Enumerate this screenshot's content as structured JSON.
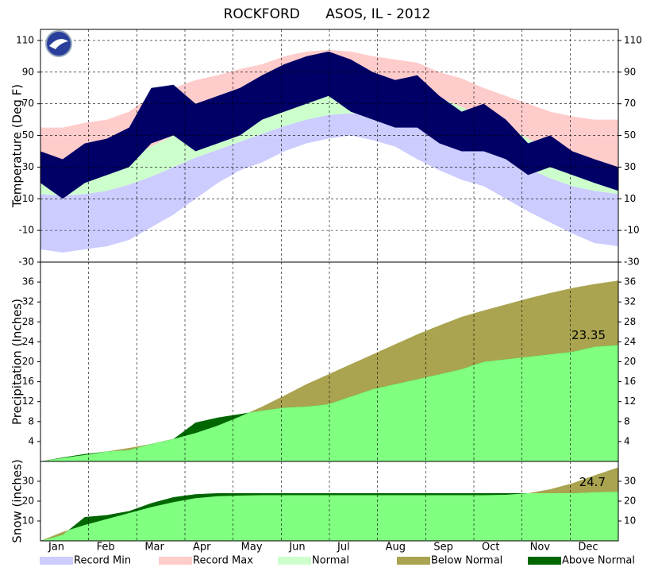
{
  "chart_data": [
    {
      "type": "range",
      "title": "ROCKFORD      ASOS, IL - 2012",
      "ylabel": "Temperature (Deg F)",
      "x": [
        1,
        15,
        29,
        43,
        57,
        71,
        85,
        99,
        113,
        127,
        141,
        155,
        169,
        183,
        197,
        211,
        225,
        239,
        253,
        267,
        281,
        295,
        309,
        323,
        337,
        351,
        366
      ],
      "xlim": [
        1,
        366
      ],
      "ylim": [
        -30,
        117
      ],
      "yticks": [
        -30,
        -10,
        10,
        30,
        50,
        70,
        90,
        110
      ],
      "record_min": [
        -22,
        -24,
        -22,
        -20,
        -16,
        -8,
        0,
        10,
        20,
        28,
        33,
        40,
        45,
        48,
        50,
        47,
        43,
        35,
        28,
        22,
        18,
        10,
        2,
        -5,
        -12,
        -18,
        -20
      ],
      "record_max": [
        55,
        55,
        58,
        60,
        65,
        75,
        80,
        85,
        88,
        92,
        95,
        100,
        103,
        104,
        103,
        100,
        98,
        96,
        90,
        86,
        80,
        75,
        70,
        65,
        62,
        60,
        60
      ],
      "normal_low": [
        13,
        12,
        13,
        15,
        19,
        24,
        30,
        36,
        41,
        46,
        51,
        56,
        60,
        63,
        64,
        63,
        61,
        57,
        51,
        45,
        40,
        35,
        29,
        23,
        18,
        15,
        13
      ],
      "normal_high": [
        29,
        29,
        30,
        33,
        37,
        43,
        50,
        56,
        62,
        68,
        73,
        78,
        82,
        84,
        84,
        83,
        81,
        78,
        74,
        68,
        62,
        56,
        48,
        41,
        35,
        31,
        29
      ],
      "observed": {
        "color": "#000066",
        "low": [
          20,
          10,
          20,
          25,
          30,
          45,
          50,
          40,
          45,
          50,
          60,
          65,
          70,
          75,
          65,
          60,
          55,
          55,
          45,
          40,
          40,
          35,
          25,
          30,
          25,
          20,
          15
        ],
        "high": [
          40,
          35,
          45,
          48,
          55,
          80,
          82,
          70,
          75,
          80,
          88,
          95,
          100,
          103,
          98,
          90,
          85,
          88,
          75,
          65,
          70,
          60,
          45,
          50,
          40,
          35,
          30
        ]
      }
    },
    {
      "type": "cumulative",
      "ylabel": "Precipitation (Inches)",
      "x": [
        1,
        15,
        29,
        43,
        57,
        71,
        85,
        99,
        113,
        127,
        141,
        155,
        169,
        183,
        197,
        211,
        225,
        239,
        253,
        267,
        281,
        295,
        309,
        323,
        337,
        351,
        366
      ],
      "xlim": [
        1,
        366
      ],
      "ylim": [
        0,
        40
      ],
      "yticks": [
        4,
        8,
        12,
        16,
        20,
        24,
        28,
        32,
        36
      ],
      "normal": [
        0,
        0.7,
        1.3,
        2.0,
        2.7,
        3.5,
        4.5,
        5.7,
        7.2,
        9.0,
        11,
        13.2,
        15.5,
        17.5,
        19.5,
        21.5,
        23.5,
        25.5,
        27.3,
        29,
        30.3,
        31.5,
        32.7,
        33.8,
        34.8,
        35.6,
        36.3
      ],
      "observed": {
        "color": "#80ff80",
        "values": [
          0,
          0.8,
          1.5,
          2.0,
          2.3,
          3.5,
          4.5,
          7.8,
          8.8,
          9.5,
          10.2,
          10.8,
          11,
          11.5,
          13,
          14.5,
          15.5,
          16.5,
          17.5,
          18.5,
          20,
          20.5,
          21,
          21.5,
          22,
          23,
          23.35
        ]
      }
    },
    {
      "type": "cumulative",
      "ylabel": "Snow (inches)",
      "x": [
        1,
        15,
        29,
        43,
        57,
        71,
        85,
        99,
        113,
        127,
        141,
        155,
        169,
        183,
        197,
        211,
        225,
        239,
        253,
        267,
        281,
        295,
        309,
        323,
        337,
        351,
        366
      ],
      "xlim": [
        1,
        366
      ],
      "ylim": [
        0,
        40
      ],
      "yticks": [
        10,
        20,
        30
      ],
      "months": [
        "Jan",
        "Feb",
        "Mar",
        "Apr",
        "May",
        "Jun",
        "Jul",
        "Aug",
        "Sep",
        "Oct",
        "Nov",
        "Dec"
      ],
      "normal": [
        0,
        4.5,
        8,
        11,
        14,
        17,
        19.5,
        21.5,
        22.5,
        22.8,
        23,
        23,
        23,
        23,
        23,
        23,
        23,
        23,
        23,
        23,
        23,
        23.2,
        24,
        26,
        29,
        33,
        37
      ],
      "observed": {
        "color": "#80ff80",
        "values": [
          0,
          3,
          12,
          13,
          15,
          19,
          22,
          23.5,
          24,
          24,
          24,
          24,
          24,
          24,
          24,
          24,
          24,
          24,
          24,
          24,
          24,
          24,
          24,
          24,
          24,
          24.5,
          24.7
        ]
      }
    }
  ],
  "legend": [
    {
      "name": "Record Min",
      "color": "#ccccff"
    },
    {
      "name": "Record Max",
      "color": "#ffcccc"
    },
    {
      "name": "Normal",
      "color": "#ccffcc"
    },
    {
      "name": "Below Normal",
      "color": "#aaa450"
    },
    {
      "name": "Above Normal",
      "color": "#006600"
    }
  ]
}
